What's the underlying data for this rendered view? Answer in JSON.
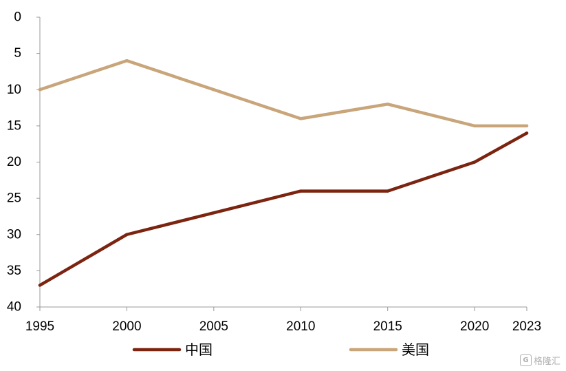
{
  "chart_data": {
    "type": "line",
    "title": "",
    "xlabel": "",
    "ylabel": "",
    "x": [
      1995,
      2000,
      2005,
      2010,
      2015,
      2020,
      2023
    ],
    "x_ticks": [
      "1995",
      "2000",
      "2005",
      "2010",
      "2015",
      "2020",
      "2023"
    ],
    "y_ticks": [
      "0",
      "5",
      "10",
      "15",
      "20",
      "25",
      "30",
      "35",
      "40"
    ],
    "ylim": [
      0,
      40
    ],
    "y_inverted": true,
    "grid": false,
    "legend_position": "bottom",
    "series": [
      {
        "name": "中国",
        "color": "#7B2410",
        "values": [
          37,
          30,
          27,
          24,
          24,
          20,
          16
        ]
      },
      {
        "name": "美国",
        "color": "#C8A57A",
        "values": [
          10,
          6,
          10,
          14,
          12,
          15,
          15
        ]
      }
    ]
  },
  "watermark": {
    "text": "格隆汇",
    "logo_glyph": "G"
  }
}
